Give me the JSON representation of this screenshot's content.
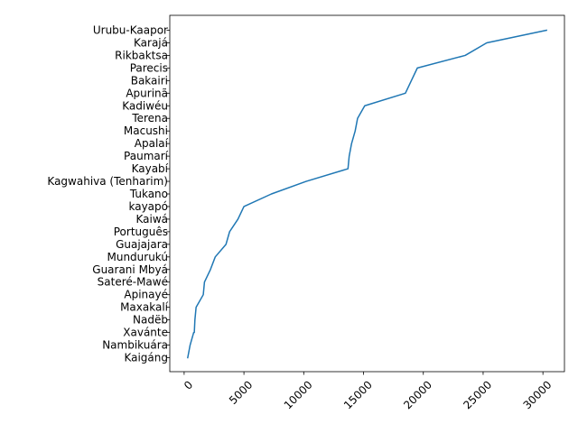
{
  "chart_data": {
    "type": "line",
    "title": "",
    "xlabel": "",
    "ylabel": "",
    "xlim": [
      -1200,
      31800
    ],
    "x_ticks": [
      0,
      5000,
      10000,
      15000,
      20000,
      25000,
      30000
    ],
    "x_tick_labels": [
      "0",
      "5000",
      "10000",
      "15000",
      "20000",
      "25000",
      "30000"
    ],
    "x_tick_rotation": 45,
    "categories": [
      "Kaigáng",
      "Nambikuára",
      "Xavánte",
      "Nadëb",
      "Maxakalí",
      "Apinayé",
      "Sateré-Mawé",
      "Guarani Mbyá",
      "Mundurukú",
      "Guajajara",
      "Português",
      "Kaiwá",
      "kayapó",
      "Tukano",
      "Kagwahiva (Tenharim)",
      "Kayabí",
      "Paumarí",
      "Apalaí",
      "Macushi",
      "Terena",
      "Kadiwéu",
      "Apurinã",
      "Bakairi",
      "Parecis",
      "Rikbaktsa",
      "Karajá",
      "Urubu-Kaapor"
    ],
    "series": [
      {
        "color": "#1f77b4",
        "x": [
          300,
          500,
          800,
          850,
          900,
          1000,
          1600,
          1700,
          2200,
          2600,
          3500,
          3800,
          4500,
          5000,
          7300,
          10200,
          13700,
          13800,
          14000,
          14300,
          14500,
          15100,
          18500,
          19000,
          19500,
          23500,
          25300,
          30300
        ],
        "y": [
          "Kaigáng",
          "Nambikuára",
          "Xavánte",
          "Xavánte",
          "Nadëb",
          "Maxakalí",
          "Apinayé",
          "Sateré-Mawé",
          "Guarani Mbyá",
          "Mundurukú",
          "Guajajara",
          "Português",
          "Kaiwá",
          "kayapó",
          "Tukano",
          "Kagwahiva (Tenharim)",
          "Kayabí",
          "Paumarí",
          "Apalaí",
          "Macushi",
          "Terena",
          "Kadiwéu",
          "Apurinã",
          "Bakairi",
          "Parecis",
          "Rikbaktsa",
          "Karajá",
          "Urubu-Kaapor"
        ]
      }
    ]
  }
}
